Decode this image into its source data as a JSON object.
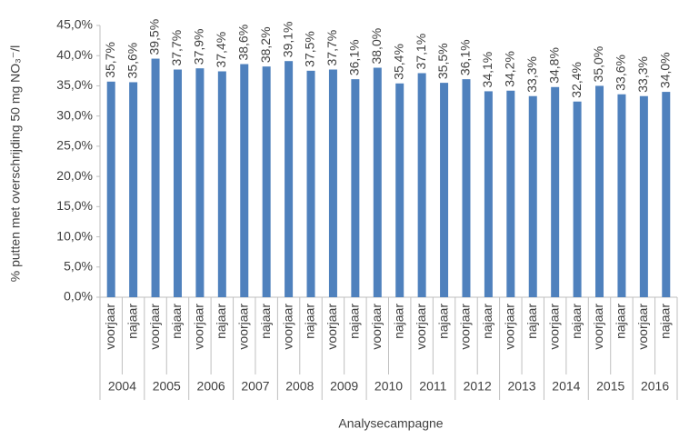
{
  "chart_data": {
    "type": "bar",
    "y_axis_label": "% putten met overschrijding 50 mg NO₃⁻/l",
    "x_axis_label": "Analysecampagne",
    "color": "#4f81bd",
    "categories": [
      "voorjaar",
      "najaar",
      "voorjaar",
      "najaar",
      "voorjaar",
      "najaar",
      "voorjaar",
      "najaar",
      "voorjaar",
      "najaar",
      "voorjaar",
      "najaar",
      "voorjaar",
      "najaar",
      "voorjaar",
      "najaar",
      "voorjaar",
      "najaar",
      "voorjaar",
      "najaar",
      "voorjaar",
      "najaar",
      "voorjaar",
      "najaar",
      "voorjaar",
      "najaar"
    ],
    "groups": [
      "2004",
      "2005",
      "2006",
      "2007",
      "2008",
      "2009",
      "2010",
      "2011",
      "2012",
      "2013",
      "2014",
      "2015",
      "2016"
    ],
    "values": [
      35.7,
      35.6,
      39.5,
      37.7,
      37.9,
      37.4,
      38.6,
      38.2,
      39.1,
      37.5,
      37.7,
      36.1,
      38.0,
      35.4,
      37.1,
      35.5,
      36.1,
      34.1,
      34.2,
      33.3,
      34.8,
      32.4,
      35.0,
      33.6,
      33.3,
      34.0
    ],
    "value_labels": [
      "35,7%",
      "35,6%",
      "39,5%",
      "37,7%",
      "37,9%",
      "37,4%",
      "38,6%",
      "38,2%",
      "39,1%",
      "37,5%",
      "37,7%",
      "36,1%",
      "38,0%",
      "35,4%",
      "37,1%",
      "35,5%",
      "36,1%",
      "34,1%",
      "34,2%",
      "33,3%",
      "34,8%",
      "32,4%",
      "35,0%",
      "33,6%",
      "33,3%",
      "34,0%"
    ],
    "ylim": [
      0,
      45
    ],
    "yticks": [
      {
        "value": 0,
        "label": "0,0%"
      },
      {
        "value": 5,
        "label": "5,0%"
      },
      {
        "value": 10,
        "label": "10,0%"
      },
      {
        "value": 15,
        "label": "15,0%"
      },
      {
        "value": 20,
        "label": "20,0%"
      },
      {
        "value": 25,
        "label": "25,0%"
      },
      {
        "value": 30,
        "label": "30,0%"
      },
      {
        "value": 35,
        "label": "35,0%"
      },
      {
        "value": 40,
        "label": "40,0%"
      },
      {
        "value": 45,
        "label": "45,0%"
      }
    ],
    "grid": false
  }
}
